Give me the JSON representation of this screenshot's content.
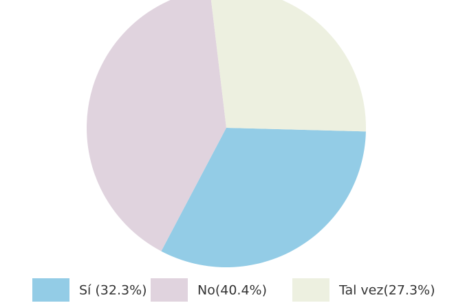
{
  "chart_data": {
    "type": "pie",
    "categories": [
      "Sí (32.3%)",
      "No(40.4%)",
      "Tal vez(27.3%)"
    ],
    "values": [
      32.3,
      40.4,
      27.3
    ],
    "colors": [
      "#93cce6",
      "#e0d3de",
      "#edf0e0"
    ],
    "legend": "bottom"
  }
}
